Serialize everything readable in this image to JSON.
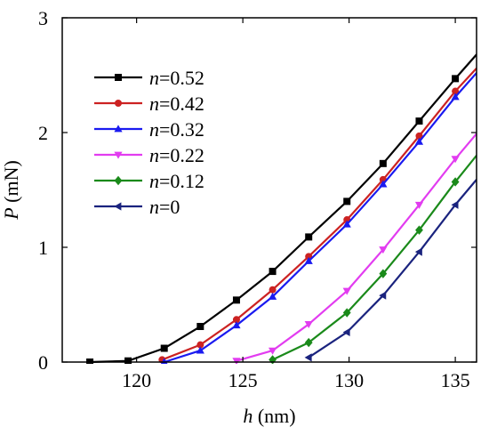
{
  "chart_data": {
    "type": "line",
    "xlabel": {
      "symbol": "h",
      "unit": " (nm)"
    },
    "ylabel": {
      "symbol": "P",
      "unit": " (mN)"
    },
    "xlim": [
      116.5,
      136
    ],
    "ylim": [
      0,
      3
    ],
    "xticks": [
      120,
      125,
      130,
      135
    ],
    "yticks": [
      0,
      1,
      2,
      3
    ],
    "xtick_labels": [
      "120",
      "125",
      "130",
      "135"
    ],
    "ytick_labels": [
      "0",
      "1",
      "2",
      "3"
    ],
    "grid": false,
    "legend_position": "upper-left",
    "series": [
      {
        "name": "n=0.52",
        "legend_var": "n",
        "legend_val": "=0.52",
        "color": "#000000",
        "marker": "square",
        "x": [
          117.8,
          119.6,
          121.3,
          123.0,
          124.7,
          126.4,
          128.1,
          129.9,
          131.6,
          133.3,
          135.0,
          136.0
        ],
        "y": [
          0.0,
          0.01,
          0.12,
          0.31,
          0.54,
          0.79,
          1.09,
          1.4,
          1.73,
          2.1,
          2.47,
          2.68
        ]
      },
      {
        "name": "n=0.42",
        "legend_var": "n",
        "legend_val": "=0.42",
        "color": "#cc2222",
        "marker": "circle",
        "x": [
          121.2,
          123.0,
          124.7,
          126.4,
          128.1,
          129.9,
          131.6,
          133.3,
          135.0,
          136.0
        ],
        "y": [
          0.02,
          0.15,
          0.37,
          0.63,
          0.92,
          1.24,
          1.59,
          1.97,
          2.36,
          2.56
        ]
      },
      {
        "name": "n=0.32",
        "legend_var": "n",
        "legend_val": "=0.32",
        "color": "#1a1af0",
        "marker": "triangle-up",
        "x": [
          121.3,
          123.0,
          124.7,
          126.4,
          128.1,
          129.9,
          131.6,
          133.3,
          135.0,
          136.0
        ],
        "y": [
          0.0,
          0.1,
          0.32,
          0.57,
          0.88,
          1.2,
          1.55,
          1.92,
          2.31,
          2.52
        ]
      },
      {
        "name": "n=0.22",
        "legend_var": "n",
        "legend_val": "=0.22",
        "color": "#e23cf0",
        "marker": "triangle-down",
        "x": [
          124.7,
          126.4,
          128.1,
          129.9,
          131.6,
          133.3,
          135.0,
          136.0
        ],
        "y": [
          0.01,
          0.1,
          0.33,
          0.62,
          0.98,
          1.37,
          1.77,
          1.99
        ]
      },
      {
        "name": "n=0.12",
        "legend_var": "n",
        "legend_val": "=0.12",
        "color": "#1a8a1a",
        "marker": "diamond",
        "x": [
          126.4,
          128.1,
          129.9,
          131.6,
          133.3,
          135.0,
          136.0
        ],
        "y": [
          0.02,
          0.17,
          0.43,
          0.77,
          1.15,
          1.57,
          1.8
        ]
      },
      {
        "name": "n=0",
        "legend_var": "n",
        "legend_val": "=0",
        "color": "#1a237e",
        "marker": "triangle-left",
        "x": [
          128.1,
          129.9,
          131.6,
          133.3,
          135.0,
          136.0
        ],
        "y": [
          0.04,
          0.26,
          0.58,
          0.96,
          1.37,
          1.59
        ]
      }
    ]
  }
}
